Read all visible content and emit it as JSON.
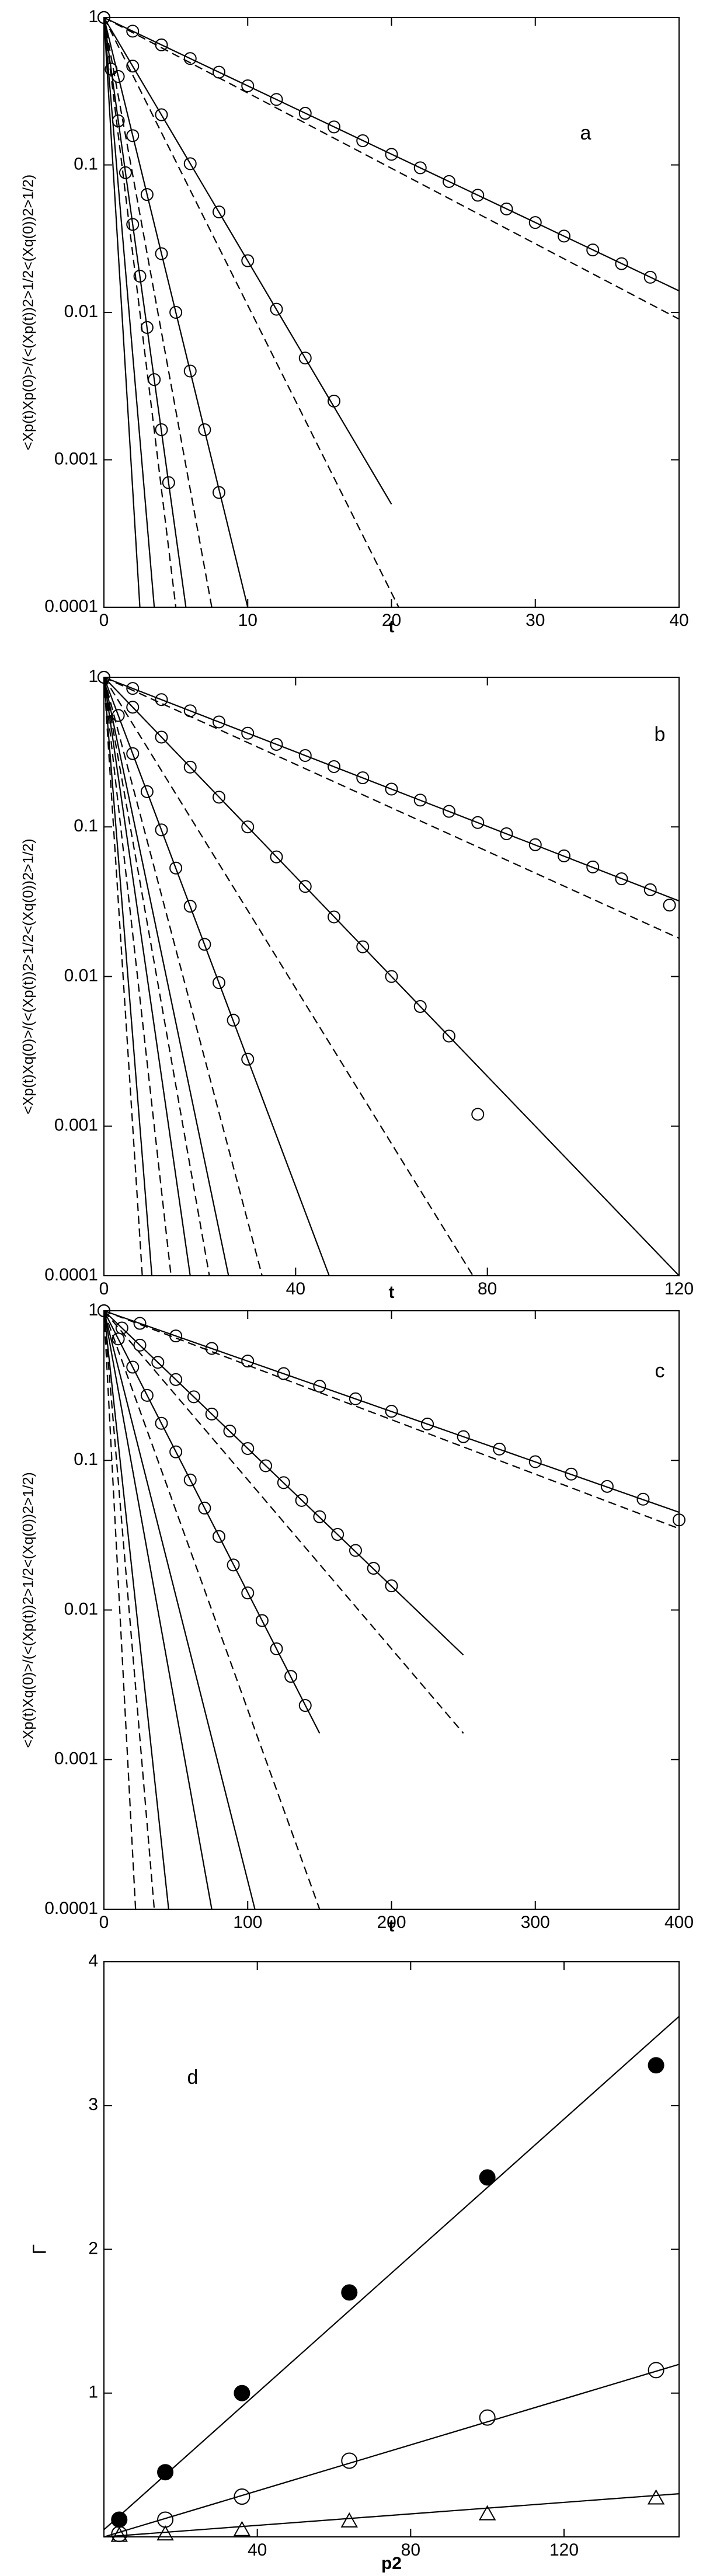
{
  "chart_data": [
    {
      "type": "line",
      "label": "a",
      "xlabel": "t",
      "ylabel": "<Xp(t)Xp(0)>/(<(Xp(t))2>1/2<(Xq(0))2>1/2)",
      "log_y": true,
      "color": "#000000",
      "xlim": [
        0,
        40
      ],
      "ylim": [
        0.0001,
        1
      ],
      "xticks": [
        0,
        10,
        20,
        30,
        40
      ],
      "yticks": [
        0.0001,
        0.001,
        0.01,
        0.1,
        1
      ],
      "series": [
        {
          "style": "solid",
          "x": [
            0,
            40
          ],
          "values": [
            1,
            0.014
          ]
        },
        {
          "style": "solid",
          "x": [
            0,
            20
          ],
          "values": [
            1,
            0.0005
          ]
        },
        {
          "style": "solid",
          "x": [
            0,
            10
          ],
          "values": [
            1,
            0.0001
          ]
        },
        {
          "style": "solid",
          "x": [
            0,
            5.7
          ],
          "values": [
            1,
            0.0001
          ]
        },
        {
          "style": "solid",
          "x": [
            0,
            3.5
          ],
          "values": [
            1,
            0.0001
          ]
        },
        {
          "style": "solid",
          "x": [
            0,
            2.5
          ],
          "values": [
            1,
            0.0001
          ]
        },
        {
          "style": "dashed",
          "x": [
            0,
            40
          ],
          "values": [
            1,
            0.009
          ]
        },
        {
          "style": "dashed",
          "x": [
            0,
            20.5
          ],
          "values": [
            1,
            0.0001
          ]
        },
        {
          "style": "dashed",
          "x": [
            0,
            7.5
          ],
          "values": [
            1,
            0.0001
          ]
        },
        {
          "style": "dashed",
          "x": [
            0,
            5
          ],
          "values": [
            1,
            0.0001
          ]
        },
        {
          "style": "circle",
          "x": [
            0,
            2,
            4,
            6,
            8,
            10,
            12,
            14,
            16,
            18,
            20,
            22,
            24,
            26,
            28,
            30,
            32,
            34,
            36,
            38
          ],
          "values": [
            1,
            0.808,
            0.652,
            0.527,
            0.426,
            0.344,
            0.278,
            0.224,
            0.181,
            0.146,
            0.118,
            0.0956,
            0.0772,
            0.0623,
            0.0503,
            0.0407,
            0.0329,
            0.0265,
            0.0214,
            0.0173
          ]
        },
        {
          "style": "circle",
          "x": [
            0,
            2,
            4,
            6,
            8,
            10,
            12,
            14,
            16
          ],
          "values": [
            1,
            0.468,
            0.219,
            0.102,
            0.048,
            0.0224,
            0.0105,
            0.0049,
            0.0025
          ]
        },
        {
          "style": "circle",
          "x": [
            0,
            1,
            2,
            3,
            4,
            5,
            6,
            7,
            8
          ],
          "values": [
            1,
            0.398,
            0.158,
            0.063,
            0.025,
            0.01,
            0.004,
            0.0016,
            0.0006
          ]
        },
        {
          "style": "circle",
          "x": [
            0,
            0.5,
            1,
            1.5,
            2,
            2.5,
            3,
            3.5,
            4,
            4.5
          ],
          "values": [
            1,
            0.446,
            0.199,
            0.0886,
            0.0395,
            0.0176,
            0.0079,
            0.0035,
            0.0016,
            0.0007
          ]
        }
      ]
    },
    {
      "type": "line",
      "label": "b",
      "xlabel": "t",
      "ylabel": "<Xp(t)Xq(0)>/(<(Xp(t))2>1/2<(Xq(0))2>1/2)",
      "log_y": true,
      "color": "#000000",
      "xlim": [
        0,
        120
      ],
      "ylim": [
        0.0001,
        1
      ],
      "xticks": [
        0,
        40,
        80,
        120
      ],
      "yticks": [
        0.0001,
        0.001,
        0.01,
        0.1,
        1
      ],
      "series": [
        {
          "style": "solid",
          "x": [
            0,
            120
          ],
          "values": [
            1,
            0.032
          ]
        },
        {
          "style": "solid",
          "x": [
            0,
            120
          ],
          "values": [
            1,
            0.0001
          ]
        },
        {
          "style": "solid",
          "x": [
            0,
            47
          ],
          "values": [
            1,
            0.0001
          ]
        },
        {
          "style": "solid",
          "x": [
            0,
            26
          ],
          "values": [
            1,
            0.0001
          ]
        },
        {
          "style": "solid",
          "x": [
            0,
            18
          ],
          "values": [
            1,
            0.0001
          ]
        },
        {
          "style": "solid",
          "x": [
            0,
            10
          ],
          "values": [
            1,
            0.0001
          ]
        },
        {
          "style": "dashed",
          "x": [
            0,
            120
          ],
          "values": [
            1,
            0.018
          ]
        },
        {
          "style": "dashed",
          "x": [
            0,
            77
          ],
          "values": [
            1,
            0.0001
          ]
        },
        {
          "style": "dashed",
          "x": [
            0,
            33
          ],
          "values": [
            1,
            0.0001
          ]
        },
        {
          "style": "dashed",
          "x": [
            0,
            22
          ],
          "values": [
            1,
            0.0001
          ]
        },
        {
          "style": "dashed",
          "x": [
            0,
            14
          ],
          "values": [
            1,
            0.0001
          ]
        },
        {
          "style": "dashed",
          "x": [
            0,
            8
          ],
          "values": [
            1,
            0.0001
          ]
        },
        {
          "style": "circle",
          "x": [
            0,
            6,
            12,
            18,
            24,
            30,
            36,
            42,
            48,
            54,
            60,
            66,
            72,
            78,
            84,
            90,
            96,
            102,
            108,
            114,
            118
          ],
          "values": [
            1,
            0.842,
            0.709,
            0.597,
            0.503,
            0.423,
            0.356,
            0.3,
            0.253,
            0.213,
            0.179,
            0.151,
            0.127,
            0.107,
            0.09,
            0.076,
            0.064,
            0.054,
            0.045,
            0.038,
            0.03
          ]
        },
        {
          "style": "circle",
          "x": [
            0,
            6,
            12,
            18,
            24,
            30,
            36,
            42,
            48,
            54,
            60,
            66,
            72,
            78
          ],
          "values": [
            1,
            0.631,
            0.398,
            0.251,
            0.158,
            0.1,
            0.063,
            0.04,
            0.025,
            0.0158,
            0.01,
            0.0063,
            0.004,
            0.0012
          ]
        },
        {
          "style": "circle",
          "x": [
            0,
            3,
            6,
            9,
            12,
            15,
            18,
            21,
            24,
            27,
            30
          ],
          "values": [
            1,
            0.556,
            0.309,
            0.172,
            0.0955,
            0.0531,
            0.0295,
            0.0164,
            0.0091,
            0.0051,
            0.0028
          ]
        }
      ]
    },
    {
      "type": "line",
      "label": "c",
      "xlabel": "t",
      "ylabel": "<Xp(t)Xq(0)>/(<(Xp(t))2>1/2<(Xq(0))2>1/2)",
      "log_y": true,
      "color": "#000000",
      "xlim": [
        0,
        400
      ],
      "ylim": [
        0.0001,
        1
      ],
      "xticks": [
        0,
        100,
        200,
        300,
        400
      ],
      "yticks": [
        0.0001,
        0.001,
        0.01,
        0.1,
        1
      ],
      "series": [
        {
          "style": "solid",
          "x": [
            0,
            400
          ],
          "values": [
            1,
            0.045
          ]
        },
        {
          "style": "solid",
          "x": [
            0,
            250
          ],
          "values": [
            1,
            0.005
          ]
        },
        {
          "style": "solid",
          "x": [
            0,
            150
          ],
          "values": [
            1,
            0.0015
          ]
        },
        {
          "style": "solid",
          "x": [
            0,
            105
          ],
          "values": [
            1,
            0.0001
          ]
        },
        {
          "style": "solid",
          "x": [
            0,
            75
          ],
          "values": [
            1,
            0.0001
          ]
        },
        {
          "style": "solid",
          "x": [
            0,
            45
          ],
          "values": [
            1,
            0.0001
          ]
        },
        {
          "style": "dashed",
          "x": [
            0,
            400
          ],
          "values": [
            1,
            0.035
          ]
        },
        {
          "style": "dashed",
          "x": [
            0,
            250
          ],
          "values": [
            1,
            0.0015
          ]
        },
        {
          "style": "dashed",
          "x": [
            0,
            150
          ],
          "values": [
            1,
            0.0001
          ]
        },
        {
          "style": "dashed",
          "x": [
            0,
            35
          ],
          "values": [
            1,
            0.0001
          ]
        },
        {
          "style": "dashed",
          "x": [
            0,
            22
          ],
          "values": [
            1,
            0.0001
          ]
        },
        {
          "style": "circle",
          "x": [
            0,
            25,
            50,
            75,
            100,
            125,
            150,
            175,
            200,
            225,
            250,
            275,
            300,
            325,
            350,
            375,
            400
          ],
          "values": [
            1,
            0.824,
            0.679,
            0.56,
            0.461,
            0.38,
            0.313,
            0.258,
            0.213,
            0.175,
            0.144,
            0.119,
            0.098,
            0.081,
            0.067,
            0.055,
            0.04
          ]
        },
        {
          "style": "circle",
          "x": [
            0,
            12.5,
            25,
            37.5,
            50,
            62.5,
            75,
            87.5,
            100,
            112.5,
            125,
            137.5,
            150,
            162.5,
            175,
            187.5,
            200
          ],
          "values": [
            1,
            0.767,
            0.589,
            0.452,
            0.347,
            0.266,
            0.204,
            0.157,
            0.12,
            0.092,
            0.071,
            0.054,
            0.042,
            0.032,
            0.025,
            0.019,
            0.0145
          ]
        },
        {
          "style": "circle",
          "x": [
            0,
            10,
            20,
            30,
            40,
            50,
            60,
            70,
            80,
            90,
            100,
            110,
            120,
            130,
            140
          ],
          "values": [
            1,
            0.648,
            0.42,
            0.272,
            0.177,
            0.114,
            0.074,
            0.048,
            0.031,
            0.02,
            0.013,
            0.0085,
            0.0055,
            0.0036,
            0.0023
          ]
        }
      ]
    },
    {
      "type": "line",
      "label": "d",
      "xlabel": "p2",
      "ylabel": "Γ",
      "log_y": false,
      "color": "#000000",
      "xlim": [
        0,
        150
      ],
      "ylim": [
        0,
        4
      ],
      "xticks": [
        40,
        80,
        120
      ],
      "yticks": [
        1,
        2,
        3,
        4
      ],
      "series": [
        {
          "style": "solid",
          "x": [
            0,
            150
          ],
          "values": [
            0.05,
            3.62
          ]
        },
        {
          "style": "solid",
          "x": [
            0,
            150
          ],
          "values": [
            0,
            1.2
          ]
        },
        {
          "style": "solid",
          "x": [
            0,
            150
          ],
          "values": [
            0,
            0.3
          ]
        },
        {
          "style": "filled-circle",
          "x": [
            4,
            16,
            36,
            64,
            100,
            144
          ],
          "values": [
            0.12,
            0.45,
            1.0,
            1.7,
            2.5,
            3.28
          ]
        },
        {
          "style": "circle",
          "x": [
            4,
            16,
            36,
            64,
            100,
            144
          ],
          "values": [
            0.02,
            0.12,
            0.28,
            0.53,
            0.83,
            1.16
          ]
        },
        {
          "style": "triangle",
          "x": [
            4,
            16,
            36,
            64,
            100,
            144
          ],
          "values": [
            0.01,
            0.02,
            0.05,
            0.11,
            0.16,
            0.27
          ]
        }
      ]
    }
  ]
}
